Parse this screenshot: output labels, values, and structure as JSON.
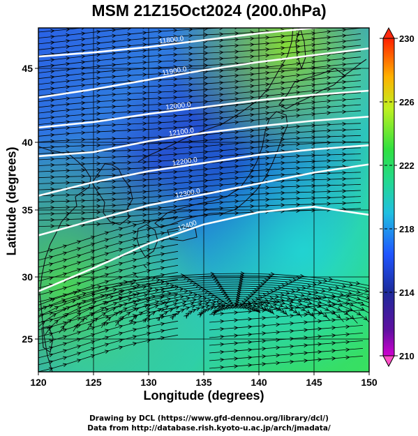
{
  "title": "MSM 21Z15Oct2024 (200.0hPa)",
  "xlabel": "Longitude (degrees)",
  "ylabel": "Latitude  (degrees)",
  "x_ticks": [
    "120",
    "125",
    "130",
    "135",
    "140",
    "145",
    "150"
  ],
  "y_ticks": [
    "25",
    "30",
    "35",
    "40",
    "45"
  ],
  "colorbar_ticks": [
    "210",
    "214",
    "218",
    "222",
    "226",
    "230"
  ],
  "contour_labels": [
    "11800.0",
    "11900.0",
    "12000.0",
    "12100.0",
    "12200.0",
    "12300.0",
    "12400"
  ],
  "credit_line1": "Drawing by DCL (https://www.gfd-dennou.org/library/dcl/)",
  "credit_line2": "Data from http://database.rish.kyoto-u.ac.jp/arch/jmadata/",
  "chart_data": {
    "type": "map",
    "title": "MSM 21Z15Oct2024 (200.0hPa)",
    "xlabel": "Longitude (degrees)",
    "ylabel": "Latitude  (degrees)",
    "xlim": [
      120,
      150
    ],
    "ylim": [
      22.4,
      47.6
    ],
    "colorbar": {
      "range": [
        210,
        230
      ],
      "ticks": [
        210,
        214,
        218,
        222,
        226,
        230
      ],
      "colors": [
        "#d000d0",
        "#2020a0",
        "#2060ff",
        "#20d0d0",
        "#30e040",
        "#c0f020",
        "#ffa000",
        "#ff2000"
      ]
    },
    "contours": [
      {
        "label": "11800.0",
        "lons": [
          120,
          125,
          130,
          135,
          140,
          145,
          150
        ],
        "lats": [
          45.5,
          45.8,
          46.2,
          46.7,
          47.2,
          47.6,
          48.0
        ]
      },
      {
        "label": "11900.0",
        "lons": [
          120,
          125,
          130,
          135,
          140,
          145,
          150
        ],
        "lats": [
          42.5,
          43.1,
          43.8,
          44.5,
          45.1,
          45.6,
          46.1
        ]
      },
      {
        "label": "12000.0",
        "lons": [
          120,
          125,
          130,
          135,
          140,
          145,
          150
        ],
        "lats": [
          40.3,
          40.7,
          41.3,
          41.8,
          42.3,
          42.7,
          43.0
        ]
      },
      {
        "label": "12100.0",
        "lons": [
          120,
          125,
          130,
          135,
          140,
          145,
          150
        ],
        "lats": [
          38.2,
          38.5,
          39.3,
          39.9,
          40.4,
          40.8,
          41.1
        ]
      },
      {
        "label": "12200.0",
        "lons": [
          120,
          125,
          130,
          135,
          140,
          145,
          150
        ],
        "lats": [
          35.3,
          36.3,
          37.1,
          37.7,
          38.3,
          38.7,
          39.0
        ]
      },
      {
        "label": "12300.0",
        "lons": [
          120,
          125,
          130,
          135,
          140,
          145,
          150
        ],
        "lats": [
          32.4,
          33.5,
          34.6,
          35.4,
          36.2,
          37.0,
          37.6
        ]
      },
      {
        "label": "12400",
        "lons": [
          120,
          125,
          130,
          135,
          140,
          145,
          150
        ],
        "lats": [
          28.3,
          30.0,
          31.8,
          33.2,
          34.1,
          34.5,
          33.9
        ]
      }
    ]
  }
}
